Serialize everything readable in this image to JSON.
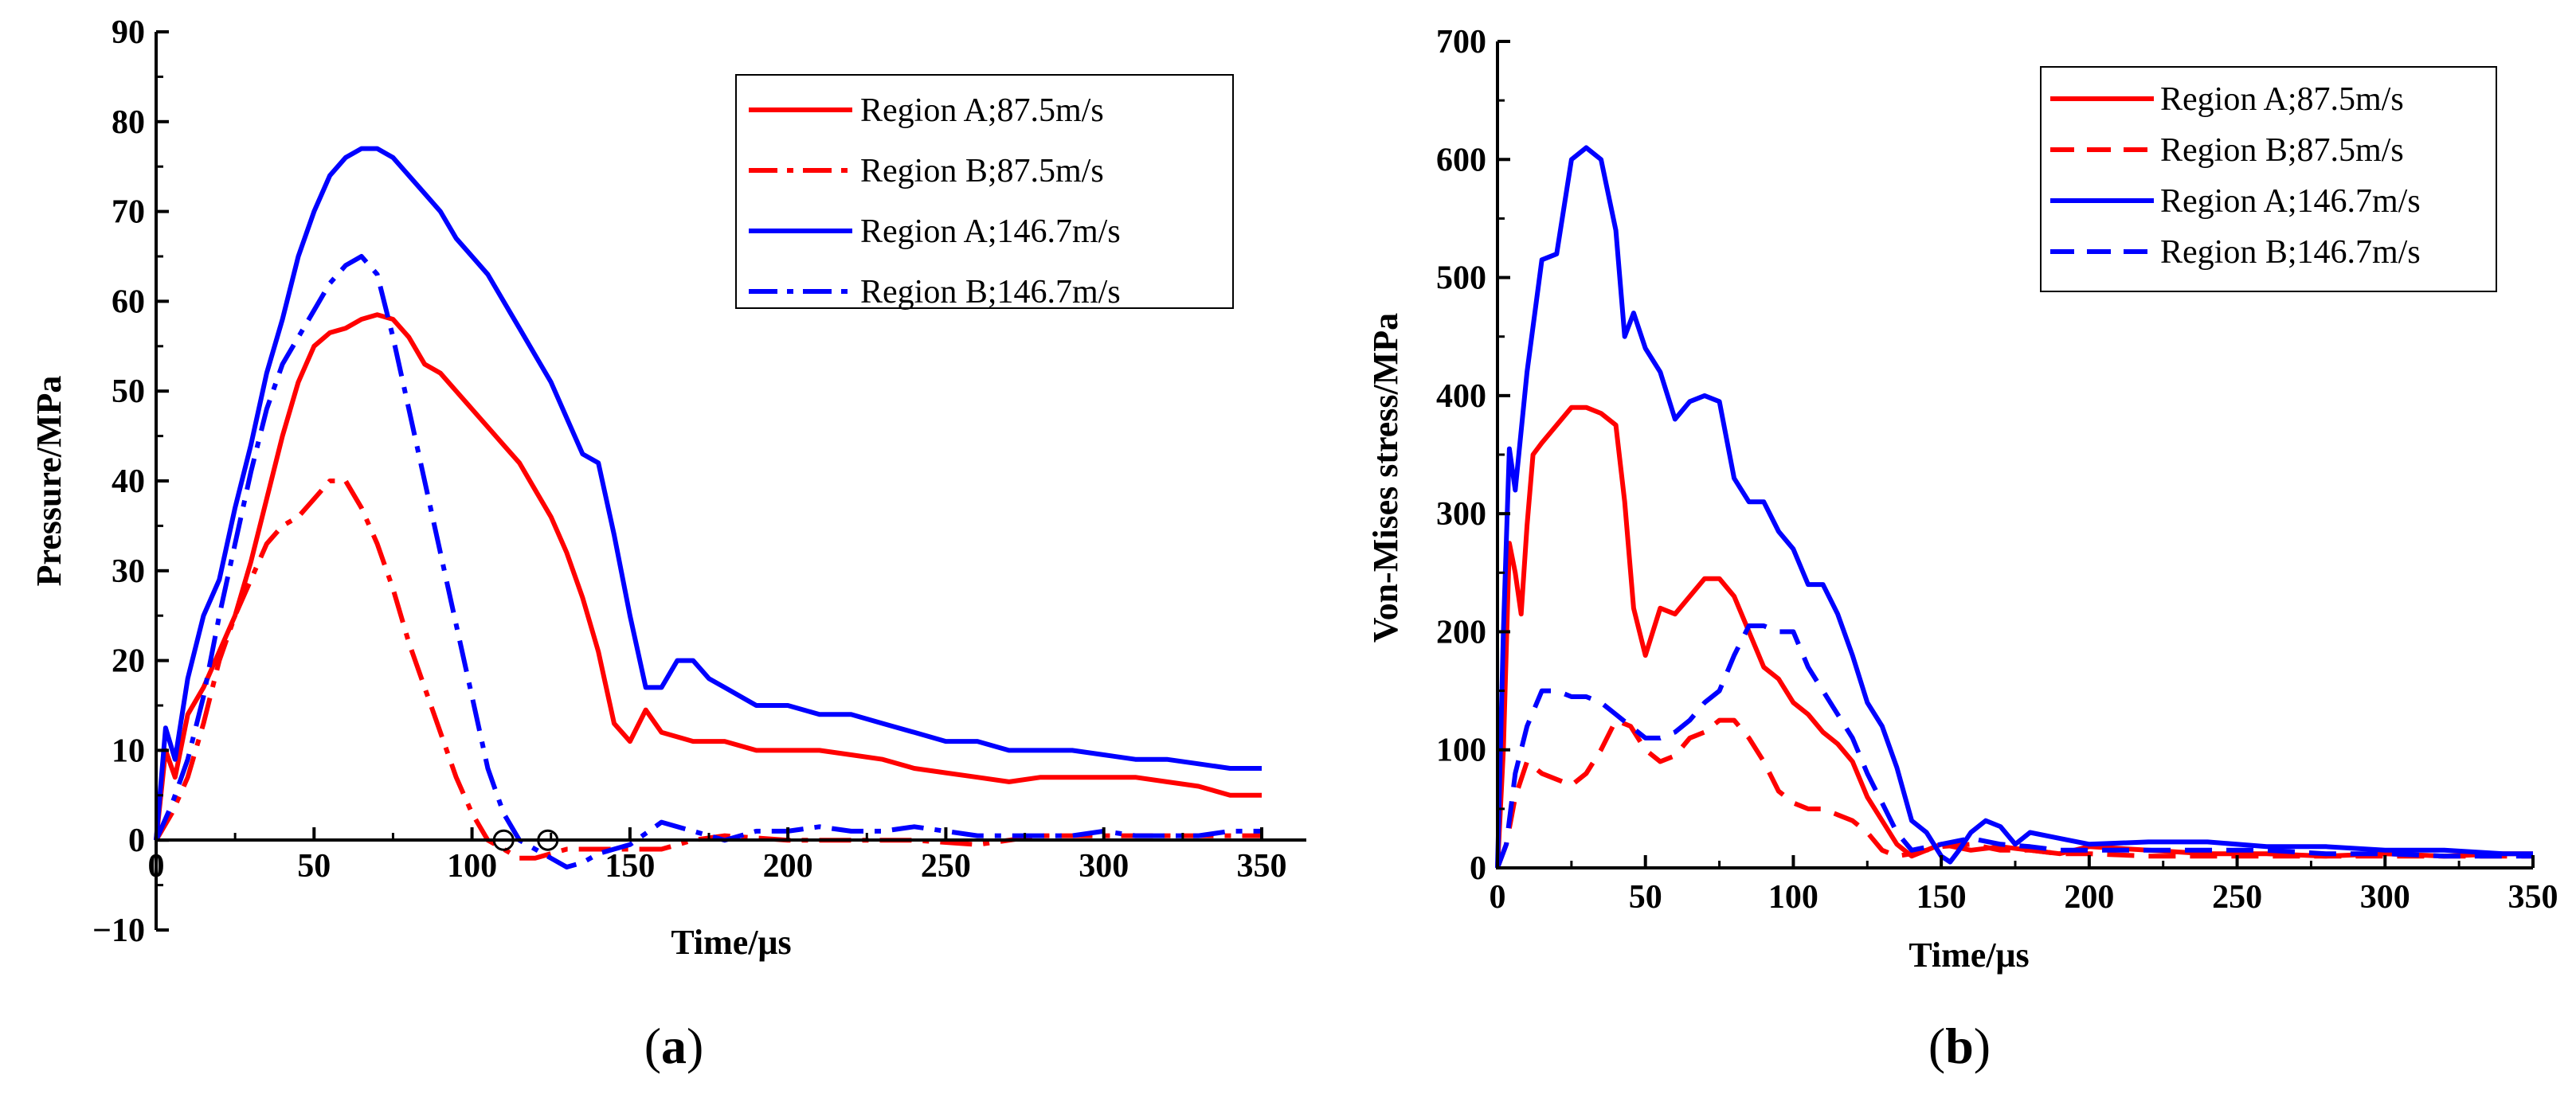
{
  "chart_data": [
    {
      "panel": "(a)",
      "panel_letter": "a",
      "type": "line",
      "xlabel": "Time/μs",
      "ylabel": "Pressure/MPa",
      "xlim": [
        0,
        350
      ],
      "ylim": [
        -10,
        90
      ],
      "xticks": [
        "0",
        "50",
        "100",
        "150",
        "200",
        "250",
        "300",
        "350"
      ],
      "xtick_values": [
        0,
        50,
        100,
        150,
        200,
        250,
        300,
        350
      ],
      "yticks": [
        "−10",
        "0",
        "10",
        "20",
        "30",
        "40",
        "50",
        "60",
        "70",
        "80",
        "90"
      ],
      "ytick_values": [
        -10,
        0,
        10,
        20,
        30,
        40,
        50,
        60,
        70,
        80,
        90
      ],
      "markers": [
        {
          "x": 110,
          "y": 0
        },
        {
          "x": 124,
          "y": 0
        }
      ],
      "series": [
        {
          "name": "Region A;87.5m/s",
          "color": "#ff0000",
          "style": "solid",
          "x": [
            0,
            3,
            6,
            10,
            15,
            20,
            25,
            30,
            35,
            40,
            45,
            50,
            55,
            60,
            65,
            70,
            75,
            80,
            85,
            90,
            95,
            100,
            105,
            110,
            115,
            120,
            125,
            130,
            135,
            140,
            145,
            150,
            155,
            160,
            170,
            180,
            190,
            200,
            210,
            220,
            230,
            240,
            250,
            260,
            270,
            280,
            290,
            300,
            310,
            320,
            330,
            340,
            350
          ],
          "y": [
            0,
            10,
            7,
            14,
            17,
            21,
            25,
            31,
            38,
            45,
            51,
            55,
            56.5,
            57,
            58,
            58.5,
            58,
            56,
            53,
            52,
            50,
            48,
            46,
            44,
            42,
            39,
            36,
            32,
            27,
            21,
            13,
            11,
            14.5,
            12,
            11,
            11,
            10,
            10,
            10,
            9.5,
            9,
            8,
            7.5,
            7,
            6.5,
            7,
            7,
            7,
            7,
            6.5,
            6,
            5,
            5
          ]
        },
        {
          "name": "Region B;87.5m/s",
          "color": "#ff0000",
          "style": "dashdot",
          "x": [
            0,
            5,
            10,
            15,
            20,
            25,
            30,
            35,
            40,
            45,
            50,
            55,
            60,
            65,
            70,
            75,
            80,
            85,
            90,
            95,
            100,
            105,
            110,
            115,
            120,
            125,
            130,
            140,
            150,
            160,
            170,
            180,
            200,
            220,
            240,
            260,
            280,
            300,
            320,
            340,
            350
          ],
          "y": [
            0,
            3,
            7,
            13,
            20,
            25,
            29,
            33,
            35,
            36,
            38,
            40,
            40,
            37,
            33,
            28,
            22,
            17,
            12,
            7,
            3,
            0,
            -1,
            -2,
            -2,
            -1.5,
            -1,
            -1,
            -1,
            -1,
            0,
            0.5,
            0,
            0,
            0,
            -0.5,
            0.5,
            0.5,
            0.5,
            0.5,
            0.5
          ]
        },
        {
          "name": "Region A;146.7m/s",
          "color": "#0000ff",
          "style": "solid",
          "x": [
            0,
            3,
            6,
            10,
            15,
            20,
            25,
            30,
            35,
            40,
            45,
            50,
            55,
            60,
            65,
            70,
            75,
            80,
            85,
            90,
            95,
            100,
            105,
            110,
            115,
            120,
            125,
            130,
            135,
            140,
            145,
            150,
            155,
            160,
            165,
            170,
            175,
            180,
            190,
            200,
            210,
            220,
            230,
            240,
            250,
            260,
            270,
            280,
            290,
            300,
            310,
            320,
            330,
            340,
            350
          ],
          "y": [
            0,
            12.5,
            9,
            18,
            25,
            29,
            37,
            44,
            52,
            58,
            65,
            70,
            74,
            76,
            77,
            77,
            76,
            74,
            72,
            70,
            67,
            65,
            63,
            60,
            57,
            54,
            51,
            47,
            43,
            42,
            34,
            25,
            17,
            17,
            20,
            20,
            18,
            17,
            15,
            15,
            14,
            14,
            13,
            12,
            11,
            11,
            10,
            10,
            10,
            9.5,
            9,
            9,
            8.5,
            8,
            8
          ]
        },
        {
          "name": "Region B;146.7m/s",
          "color": "#0000ff",
          "style": "dashdot",
          "x": [
            0,
            5,
            10,
            15,
            20,
            25,
            30,
            35,
            40,
            45,
            50,
            55,
            60,
            65,
            70,
            75,
            80,
            85,
            90,
            95,
            100,
            105,
            110,
            115,
            120,
            125,
            130,
            135,
            140,
            150,
            160,
            170,
            180,
            190,
            200,
            210,
            220,
            230,
            240,
            250,
            260,
            270,
            280,
            290,
            300,
            310,
            320,
            330,
            340,
            350
          ],
          "y": [
            0,
            4,
            9,
            16,
            25,
            33,
            41,
            48,
            53,
            56,
            59,
            62,
            64,
            65,
            63,
            56,
            48,
            40,
            32,
            24,
            16,
            8,
            3,
            0,
            -1,
            -2,
            -3,
            -2.5,
            -1.5,
            -0.5,
            2,
            1,
            0,
            1,
            1,
            1.5,
            1,
            1,
            1.5,
            1,
            0.5,
            0.5,
            0.5,
            0.5,
            1,
            0.5,
            0.5,
            0.5,
            1,
            1
          ]
        }
      ],
      "legend_position": "top-right"
    },
    {
      "panel": "(b)",
      "panel_letter": "b",
      "type": "line",
      "xlabel": "Time/μs",
      "ylabel": "Von-Mises stress/MPa",
      "xlim": [
        0,
        350
      ],
      "ylim": [
        0,
        700
      ],
      "xticks": [
        "0",
        "50",
        "100",
        "150",
        "200",
        "250",
        "300",
        "350"
      ],
      "xtick_values": [
        0,
        50,
        100,
        150,
        200,
        250,
        300,
        350
      ],
      "yticks": [
        "0",
        "100",
        "200",
        "300",
        "400",
        "500",
        "600",
        "700"
      ],
      "ytick_values": [
        0,
        100,
        200,
        300,
        400,
        500,
        600,
        700
      ],
      "series": [
        {
          "name": "Region A;87.5m/s",
          "color": "#ff0000",
          "style": "solid",
          "x": [
            0,
            2,
            4,
            6,
            8,
            10,
            12,
            15,
            20,
            25,
            30,
            35,
            40,
            43,
            46,
            50,
            55,
            60,
            65,
            70,
            75,
            80,
            85,
            90,
            95,
            100,
            105,
            110,
            115,
            120,
            125,
            130,
            135,
            140,
            145,
            150,
            160,
            170,
            180,
            190,
            200,
            220,
            240,
            260,
            280,
            300,
            320,
            340,
            350
          ],
          "y": [
            0,
            100,
            275,
            250,
            215,
            290,
            350,
            360,
            375,
            390,
            390,
            385,
            375,
            310,
            220,
            180,
            220,
            215,
            230,
            245,
            245,
            230,
            200,
            170,
            160,
            140,
            130,
            115,
            105,
            90,
            60,
            40,
            20,
            10,
            15,
            20,
            15,
            18,
            15,
            12,
            18,
            15,
            12,
            12,
            10,
            12,
            10,
            12,
            12
          ]
        },
        {
          "name": "Region B;87.5m/s",
          "color": "#ff0000",
          "style": "dash",
          "x": [
            0,
            3,
            6,
            10,
            15,
            20,
            25,
            30,
            35,
            40,
            45,
            50,
            55,
            60,
            65,
            70,
            75,
            80,
            85,
            90,
            95,
            100,
            105,
            110,
            115,
            120,
            125,
            130,
            135,
            140,
            150,
            160,
            170,
            180,
            190,
            200,
            220,
            240,
            260,
            280,
            300,
            320,
            340,
            350
          ],
          "y": [
            0,
            20,
            60,
            90,
            80,
            75,
            70,
            80,
            100,
            125,
            120,
            100,
            90,
            95,
            110,
            115,
            125,
            125,
            110,
            90,
            65,
            55,
            50,
            50,
            45,
            40,
            30,
            15,
            10,
            12,
            18,
            20,
            15,
            15,
            12,
            12,
            10,
            10,
            10,
            10,
            10,
            10,
            10,
            10
          ]
        },
        {
          "name": "Region A;146.7m/s",
          "color": "#0000ff",
          "style": "solid",
          "x": [
            0,
            2,
            4,
            6,
            8,
            10,
            15,
            20,
            25,
            30,
            35,
            40,
            43,
            46,
            50,
            55,
            60,
            65,
            70,
            75,
            80,
            85,
            90,
            95,
            100,
            105,
            110,
            115,
            120,
            125,
            130,
            135,
            140,
            145,
            150,
            153,
            156,
            160,
            165,
            170,
            175,
            180,
            190,
            200,
            220,
            240,
            260,
            280,
            300,
            320,
            340,
            350
          ],
          "y": [
            0,
            200,
            355,
            320,
            370,
            420,
            515,
            520,
            600,
            610,
            600,
            540,
            450,
            470,
            440,
            420,
            380,
            395,
            400,
            395,
            330,
            310,
            310,
            285,
            270,
            240,
            240,
            215,
            180,
            140,
            120,
            85,
            40,
            30,
            10,
            5,
            15,
            30,
            40,
            35,
            20,
            30,
            25,
            20,
            22,
            22,
            18,
            18,
            15,
            15,
            12,
            12
          ]
        },
        {
          "name": "Region B;146.7m/s",
          "color": "#0000ff",
          "style": "dash",
          "x": [
            0,
            3,
            6,
            10,
            15,
            20,
            25,
            30,
            35,
            40,
            45,
            50,
            55,
            60,
            65,
            70,
            75,
            80,
            85,
            90,
            95,
            100,
            105,
            110,
            115,
            120,
            125,
            130,
            135,
            140,
            150,
            160,
            170,
            180,
            190,
            200,
            220,
            240,
            260,
            280,
            300,
            320,
            340,
            350
          ],
          "y": [
            0,
            20,
            80,
            120,
            150,
            150,
            145,
            145,
            140,
            130,
            120,
            110,
            110,
            115,
            125,
            140,
            150,
            180,
            205,
            205,
            200,
            200,
            170,
            150,
            130,
            110,
            80,
            55,
            30,
            15,
            20,
            25,
            20,
            18,
            15,
            15,
            15,
            15,
            15,
            12,
            12,
            10,
            10,
            10
          ]
        }
      ],
      "legend_position": "top-right"
    }
  ]
}
